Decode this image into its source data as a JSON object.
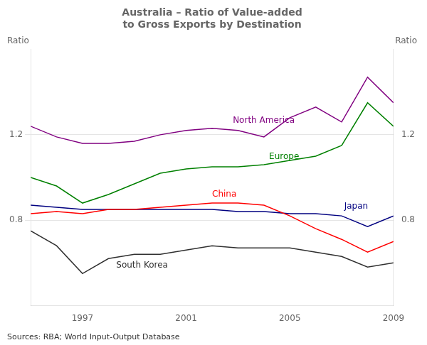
{
  "chart_data": {
    "type": "line",
    "title": "Australia – Ratio of Value-added\nto Gross Exports by Destination",
    "ylabel": "Ratio",
    "y2label": "Ratio",
    "source": "Sources: RBA; World Input-Output Database",
    "x": [
      1995,
      1996,
      1997,
      1998,
      1999,
      2000,
      2001,
      2002,
      2003,
      2004,
      2005,
      2006,
      2007,
      2008,
      2009
    ],
    "series": [
      {
        "name": "North America",
        "color": "#800080",
        "values": [
          1.24,
          1.19,
          1.16,
          1.16,
          1.17,
          1.2,
          1.22,
          1.23,
          1.22,
          1.19,
          1.28,
          1.33,
          1.26,
          1.47,
          1.35
        ]
      },
      {
        "name": "Europe",
        "color": "#008000",
        "values": [
          1.0,
          0.96,
          0.88,
          0.92,
          0.97,
          1.02,
          1.04,
          1.05,
          1.05,
          1.06,
          1.08,
          1.1,
          1.15,
          1.35,
          1.24
        ]
      },
      {
        "name": "China",
        "color": "#FF0000",
        "values": [
          0.83,
          0.84,
          0.83,
          0.85,
          0.85,
          0.86,
          0.87,
          0.88,
          0.88,
          0.87,
          0.82,
          0.76,
          0.71,
          0.65,
          0.7
        ]
      },
      {
        "name": "Japan",
        "color": "#000080",
        "values": [
          0.87,
          0.86,
          0.85,
          0.85,
          0.85,
          0.85,
          0.85,
          0.85,
          0.84,
          0.84,
          0.83,
          0.83,
          0.82,
          0.77,
          0.82
        ]
      },
      {
        "name": "South Korea",
        "color": "#303030",
        "values": [
          0.75,
          0.68,
          0.55,
          0.62,
          0.64,
          0.64,
          0.66,
          0.68,
          0.67,
          0.67,
          0.67,
          0.65,
          0.63,
          0.58,
          0.6
        ]
      }
    ],
    "annotations": [
      {
        "text": "North America",
        "x": 2002.8,
        "y": 1.255,
        "color": "#800080"
      },
      {
        "text": "Europe",
        "x": 2004.2,
        "y": 1.085,
        "color": "#008000"
      },
      {
        "text": "China",
        "x": 2002.0,
        "y": 0.91,
        "color": "#FF0000"
      },
      {
        "text": "Japan",
        "x": 2007.1,
        "y": 0.852,
        "color": "#000080"
      },
      {
        "text": "South Korea",
        "x": 1998.3,
        "y": 0.578,
        "color": "#303030"
      }
    ],
    "xlim": [
      1995,
      2009
    ],
    "xticks": [
      1997,
      2001,
      2005,
      2009
    ],
    "ylim": [
      0.4,
      1.6
    ],
    "yticks": [
      0.8,
      1.2
    ],
    "y2lim": [
      0.4,
      1.6
    ],
    "y2ticks": [
      0.8,
      1.2
    ],
    "grid": true
  }
}
